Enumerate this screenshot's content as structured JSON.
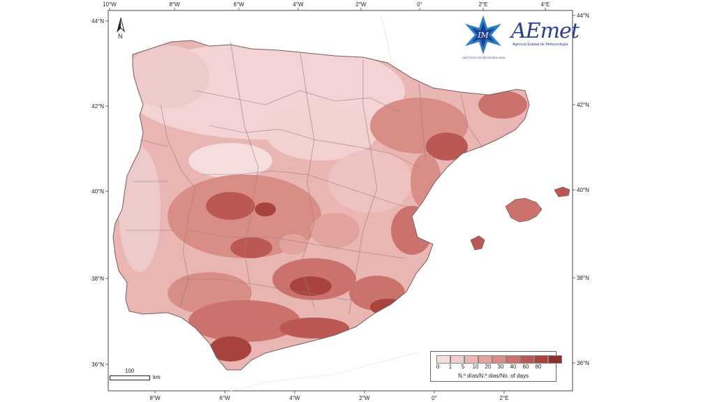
{
  "map": {
    "title": "",
    "lon_ticks_top": [
      "10°W",
      "8°W",
      "6°W",
      "4°W",
      "2°W",
      "0°",
      "2°E",
      "4°E"
    ],
    "lon_ticks_bottom": [
      "8°W",
      "6°W",
      "4°W",
      "2°W",
      "0°",
      "2°E"
    ],
    "lat_ticks": [
      "44°N",
      "42°N",
      "40°N",
      "38°N",
      "36°N"
    ]
  },
  "north_arrow": {
    "letter": "N"
  },
  "scale": {
    "value": "100",
    "unit": "km"
  },
  "legend": {
    "values": [
      "0",
      "1",
      "5",
      "10",
      "20",
      "30",
      "40",
      "60",
      "80"
    ],
    "title": "N.º días/N.º dias/No. of days",
    "colors": [
      "#f6dede",
      "#f0cccc",
      "#e9b6b3",
      "#e2a29e",
      "#d98d87",
      "#cc726c",
      "#bb5853",
      "#a8433e",
      "#8f2f2b"
    ]
  },
  "logos": {
    "im_caption": "INSTITUTO DE METEOROLOGIA",
    "aemet_name": "AEmet",
    "aemet_sub": "Agencia Estatal de Meteorología"
  },
  "colors": {
    "land_base": "#e9b6b3",
    "sea": "#ffffff",
    "border": "#8b6b6b"
  }
}
